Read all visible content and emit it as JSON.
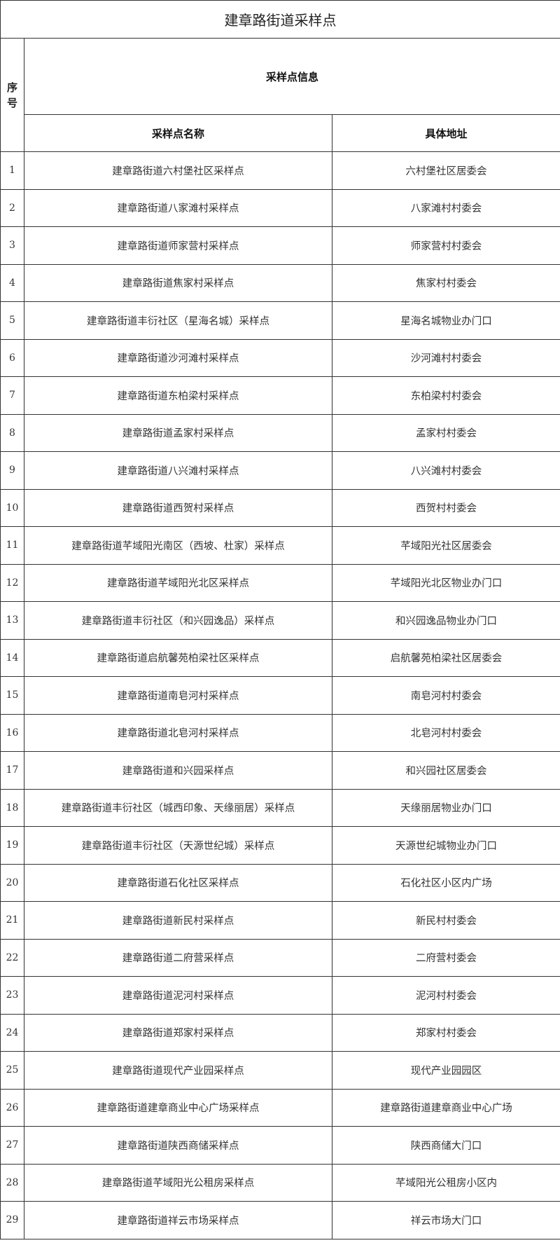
{
  "title": "建章路街道采样点",
  "headers": {
    "seq": "序号",
    "info": "采样点信息",
    "name": "采样点名称",
    "address": "具体地址"
  },
  "rows": [
    {
      "no": "1",
      "name": "建章路街道六村堡社区采样点",
      "address": "六村堡社区居委会"
    },
    {
      "no": "2",
      "name": "建章路街道八家滩村采样点",
      "address": "八家滩村村委会"
    },
    {
      "no": "3",
      "name": "建章路街道师家营村采样点",
      "address": "师家营村村委会"
    },
    {
      "no": "4",
      "name": "建章路街道焦家村采样点",
      "address": "焦家村村委会"
    },
    {
      "no": "5",
      "name": "建章路街道丰衍社区（星海名城）采样点",
      "address": "星海名城物业办门口"
    },
    {
      "no": "6",
      "name": "建章路街道沙河滩村采样点",
      "address": "沙河滩村村委会"
    },
    {
      "no": "7",
      "name": "建章路街道东柏梁村采样点",
      "address": "东柏梁村村委会"
    },
    {
      "no": "8",
      "name": "建章路街道孟家村采样点",
      "address": "孟家村村委会"
    },
    {
      "no": "9",
      "name": "建章路街道八兴滩村采样点",
      "address": "八兴滩村村委会"
    },
    {
      "no": "10",
      "name": "建章路街道西贺村采样点",
      "address": "西贺村村委会"
    },
    {
      "no": "11",
      "name": "建章路街道芊域阳光南区（西坡、杜家）采样点",
      "address": "芊域阳光社区居委会"
    },
    {
      "no": "12",
      "name": "建章路街道芊域阳光北区采样点",
      "address": "芊域阳光北区物业办门口"
    },
    {
      "no": "13",
      "name": "建章路街道丰衍社区（和兴园逸品）采样点",
      "address": "和兴园逸品物业办门口"
    },
    {
      "no": "14",
      "name": "建章路街道启航馨苑柏梁社区采样点",
      "address": "启航馨苑柏梁社区居委会"
    },
    {
      "no": "15",
      "name": "建章路街道南皂河村采样点",
      "address": "南皂河村村委会"
    },
    {
      "no": "16",
      "name": "建章路街道北皂河村采样点",
      "address": "北皂河村村委会"
    },
    {
      "no": "17",
      "name": "建章路街道和兴园采样点",
      "address": "和兴园社区居委会"
    },
    {
      "no": "18",
      "name": "建章路街道丰衍社区（城西印象、天缘丽居）采样点",
      "address": "天缘丽居物业办门口"
    },
    {
      "no": "19",
      "name": "建章路街道丰衍社区（天源世纪城）采样点",
      "address": "天源世纪城物业办门口"
    },
    {
      "no": "20",
      "name": "建章路街道石化社区采样点",
      "address": "石化社区小区内广场"
    },
    {
      "no": "21",
      "name": "建章路街道新民村采样点",
      "address": "新民村村委会"
    },
    {
      "no": "22",
      "name": "建章路街道二府营采样点",
      "address": "二府营村委会"
    },
    {
      "no": "23",
      "name": "建章路街道泥河村采样点",
      "address": "泥河村村委会"
    },
    {
      "no": "24",
      "name": "建章路街道郑家村采样点",
      "address": "郑家村村委会"
    },
    {
      "no": "25",
      "name": "建章路街道现代产业园采样点",
      "address": "现代产业园园区"
    },
    {
      "no": "26",
      "name": "建章路街道建章商业中心广场采样点",
      "address": "建章路街道建章商业中心广场"
    },
    {
      "no": "27",
      "name": "建章路街道陕西商储采样点",
      "address": "陕西商储大门口"
    },
    {
      "no": "28",
      "name": "建章路街道芊域阳光公租房采样点",
      "address": "芊域阳光公租房小区内"
    },
    {
      "no": "29",
      "name": "建章路街道祥云市场采样点",
      "address": "祥云市场大门口"
    }
  ]
}
